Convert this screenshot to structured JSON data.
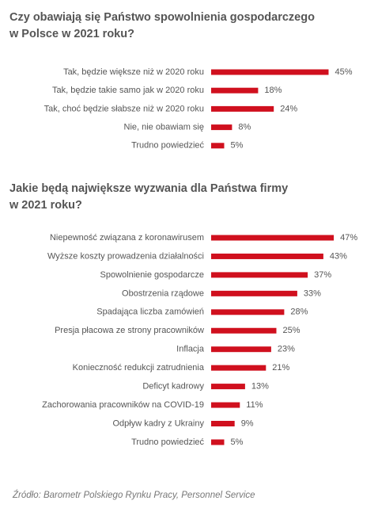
{
  "chart_data": [
    {
      "type": "bar",
      "orientation": "horizontal",
      "title": "Czy obawiają się Państwo spowolnienia gospodarczego\nw Polsce w 2021 roku?",
      "categories": [
        "Tak, będzie większe niż w 2020 roku",
        "Tak, będzie takie samo jak w 2020 roku",
        "Tak, choć będzie słabsze niż w 2020 roku",
        "Nie, nie obawiam się",
        "Trudno powiedzieć"
      ],
      "values": [
        45,
        18,
        24,
        8,
        5
      ],
      "value_labels": [
        "45%",
        "18%",
        "24%",
        "8%",
        "5%"
      ],
      "color": "#d0101e"
    },
    {
      "type": "bar",
      "orientation": "horizontal",
      "title": "Jakie będą największe wyzwania dla Państwa firmy\nw 2021 roku?",
      "categories": [
        "Niepewność związana z koronawirusem",
        "Wyższe koszty prowadzenia działalności",
        "Spowolnienie gospodarcze",
        "Obostrzenia rządowe",
        "Spadająca liczba zamówień",
        "Presja płacowa ze strony pracowników",
        "Inflacja",
        "Konieczność redukcji zatrudnienia",
        "Deficyt kadrowy",
        "Zachorowania pracowników na COVID-19",
        "Odpływ kadry z Ukrainy",
        "Trudno powiedzieć"
      ],
      "values": [
        47,
        43,
        37,
        33,
        28,
        25,
        23,
        21,
        13,
        11,
        9,
        5
      ],
      "value_labels": [
        "47%",
        "43%",
        "37%",
        "33%",
        "28%",
        "25%",
        "23%",
        "21%",
        "13%",
        "11%",
        "9%",
        "5%"
      ],
      "color": "#d0101e"
    }
  ],
  "source": "Źródło: Barometr Polskiego Rynku Pracy, Personnel Service"
}
